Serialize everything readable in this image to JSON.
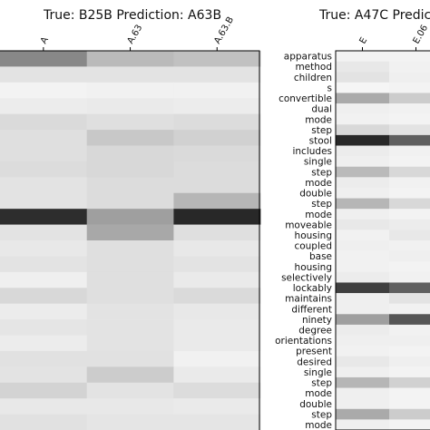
{
  "chart_data": [
    {
      "type": "heatmap",
      "title": "True: B25B  Prediction: A63B",
      "columns": [
        "A",
        "A.63",
        "A.63.B"
      ],
      "rows": 24,
      "values": [
        [
          0.5,
          0.28,
          0.25
        ],
        [
          0.1,
          0.1,
          0.1
        ],
        [
          0.03,
          0.04,
          0.04
        ],
        [
          0.06,
          0.07,
          0.06
        ],
        [
          0.14,
          0.12,
          0.13
        ],
        [
          0.12,
          0.22,
          0.18
        ],
        [
          0.12,
          0.15,
          0.14
        ],
        [
          0.13,
          0.15,
          0.13
        ],
        [
          0.1,
          0.13,
          0.13
        ],
        [
          0.1,
          0.13,
          0.3
        ],
        [
          0.9,
          0.4,
          0.92
        ],
        [
          0.1,
          0.36,
          0.12
        ],
        [
          0.08,
          0.12,
          0.08
        ],
        [
          0.1,
          0.12,
          0.1
        ],
        [
          0.05,
          0.12,
          0.07
        ],
        [
          0.15,
          0.12,
          0.14
        ],
        [
          0.06,
          0.1,
          0.08
        ],
        [
          0.09,
          0.1,
          0.07
        ],
        [
          0.06,
          0.1,
          0.07
        ],
        [
          0.11,
          0.11,
          0.04
        ],
        [
          0.1,
          0.2,
          0.07
        ],
        [
          0.17,
          0.1,
          0.13
        ],
        [
          0.08,
          0.08,
          0.07
        ],
        [
          0.11,
          0.09,
          0.09
        ]
      ]
    },
    {
      "type": "heatmap",
      "title": "True: A47C  Predic",
      "columns": [
        "E",
        "E.06"
      ],
      "rows": [
        "apparatus",
        "method",
        "children",
        "s",
        "convertible",
        "dual",
        "mode",
        "step",
        "stool",
        "includes",
        "single",
        "step",
        "mode",
        "double",
        "step",
        "mode",
        "moveable",
        "housing",
        "coupled",
        "base",
        "housing",
        "selectively",
        "lockably",
        "maintains",
        "different",
        "ninety",
        "degree",
        "orientations",
        "present",
        "desired",
        "single",
        "step",
        "mode",
        "double",
        "step",
        "mode"
      ],
      "values": [
        [
          0.03,
          0.03
        ],
        [
          0.08,
          0.04
        ],
        [
          0.1,
          0.05
        ],
        [
          0.02,
          0.03
        ],
        [
          0.35,
          0.2
        ],
        [
          0.05,
          0.04
        ],
        [
          0.04,
          0.03
        ],
        [
          0.15,
          0.1
        ],
        [
          0.92,
          0.68
        ],
        [
          0.06,
          0.04
        ],
        [
          0.05,
          0.03
        ],
        [
          0.28,
          0.15
        ],
        [
          0.06,
          0.04
        ],
        [
          0.05,
          0.03
        ],
        [
          0.3,
          0.15
        ],
        [
          0.05,
          0.03
        ],
        [
          0.08,
          0.06
        ],
        [
          0.04,
          0.08
        ],
        [
          0.05,
          0.04
        ],
        [
          0.04,
          0.05
        ],
        [
          0.04,
          0.03
        ],
        [
          0.06,
          0.04
        ],
        [
          0.82,
          0.68
        ],
        [
          0.05,
          0.1
        ],
        [
          0.05,
          0.04
        ],
        [
          0.4,
          0.72
        ],
        [
          0.06,
          0.04
        ],
        [
          0.05,
          0.05
        ],
        [
          0.04,
          0.03
        ],
        [
          0.08,
          0.05
        ],
        [
          0.05,
          0.03
        ],
        [
          0.3,
          0.18
        ],
        [
          0.05,
          0.03
        ],
        [
          0.05,
          0.03
        ],
        [
          0.35,
          0.2
        ],
        [
          0.05,
          0.03
        ]
      ]
    }
  ]
}
